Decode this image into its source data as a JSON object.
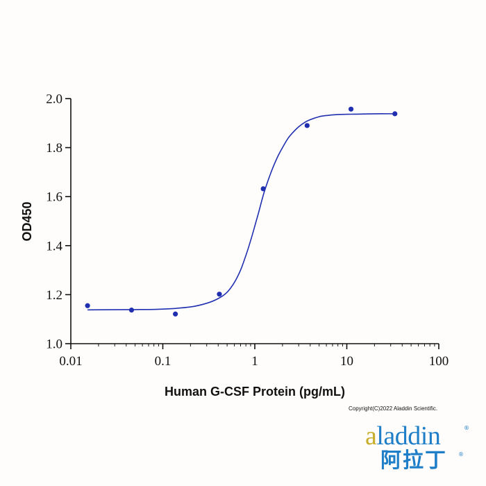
{
  "chart_data": {
    "type": "scatter",
    "xlabel": "Human G-CSF Protein (pg/mL)",
    "ylabel": "OD450",
    "x_scale": "log",
    "xlim": [
      0.01,
      100
    ],
    "ylim": [
      1.0,
      2.0
    ],
    "x_tick_labels": [
      "0.01",
      "0.1",
      "1",
      "10",
      "100"
    ],
    "y_tick_labels": [
      "1.0",
      "1.2",
      "1.4",
      "1.6",
      "1.8",
      "2.0"
    ],
    "y_ticks": [
      1.0,
      1.2,
      1.4,
      1.6,
      1.8,
      2.0
    ],
    "grid": false,
    "series": [
      {
        "x": [
          0.0152,
          0.0457,
          0.137,
          0.412,
          1.235,
          3.704,
          11.11,
          33.33
        ],
        "y": [
          1.155,
          1.137,
          1.121,
          1.202,
          1.632,
          1.89,
          1.957,
          1.938
        ],
        "color": "#1f2fb0",
        "fit": "4PL",
        "fit_curve": {
          "x": [
            0.0152,
            0.05,
            0.1,
            0.2,
            0.3,
            0.4,
            0.5,
            0.6,
            0.7,
            0.8,
            0.9,
            1.0,
            1.1,
            1.25,
            1.4,
            1.6,
            1.8,
            2.0,
            2.3,
            2.6,
            3.0,
            3.5,
            4.0,
            5.0,
            6.0,
            8.0,
            10.0,
            15.0,
            20.0,
            33.33
          ],
          "y": [
            1.138,
            1.139,
            1.141,
            1.15,
            1.165,
            1.184,
            1.21,
            1.25,
            1.3,
            1.36,
            1.42,
            1.48,
            1.535,
            1.612,
            1.668,
            1.725,
            1.768,
            1.8,
            1.838,
            1.862,
            1.885,
            1.903,
            1.914,
            1.926,
            1.931,
            1.935,
            1.936,
            1.937,
            1.938,
            1.938
          ]
        }
      }
    ]
  },
  "watermark": {
    "copyright": "Copyright(C)2022 Aladdin Scientific.",
    "logo_text": "aladdin",
    "logo_cjk": "阿拉丁",
    "registered_mark": "®",
    "brand_color": "#1e7ec8",
    "accent_color": "#c7ad2a"
  }
}
